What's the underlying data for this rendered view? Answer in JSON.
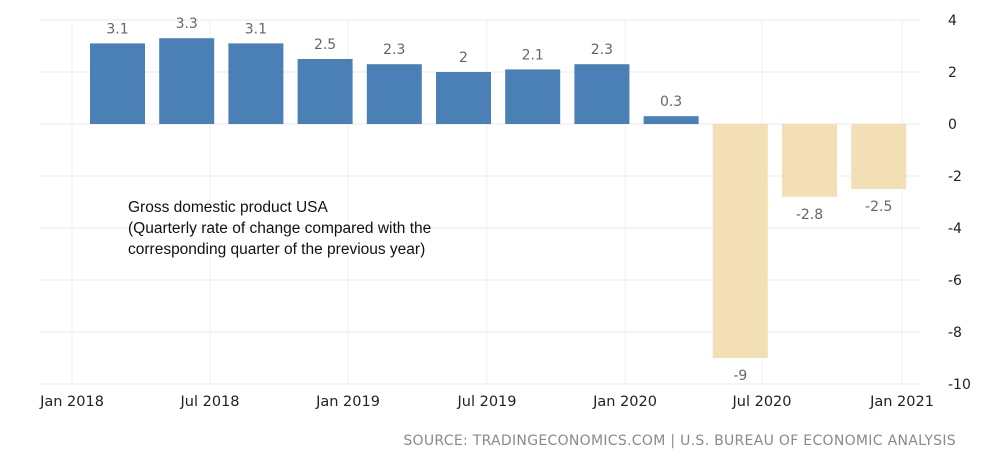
{
  "chart_data": {
    "type": "bar",
    "categories": [
      "Jan 2018",
      "Apr 2018",
      "Jul 2018",
      "Oct 2018",
      "Jan 2019",
      "Apr 2019",
      "Jul 2019",
      "Oct 2019",
      "Jan 2020",
      "Apr 2020",
      "Jul 2020",
      "Oct 2020"
    ],
    "values": [
      3.1,
      3.3,
      3.1,
      2.5,
      2.3,
      2,
      2.1,
      2.3,
      0.3,
      -9,
      -2.8,
      -2.5
    ],
    "data_labels": [
      "3.1",
      "3.3",
      "3.1",
      "2.5",
      "2.3",
      "2",
      "2.1",
      "2.3",
      "0.3",
      "-9",
      "-2.8",
      "-2.5"
    ],
    "x_tick_labels": [
      "Jan 2018",
      "Jul 2018",
      "Jan 2019",
      "Jul 2019",
      "Jan 2020",
      "Jul 2020",
      "Jan 2021"
    ],
    "y_tick_labels": [
      "4",
      "2",
      "0",
      "-2",
      "-4",
      "-6",
      "-8",
      "-10"
    ],
    "ylim": [
      -10,
      4
    ],
    "y_axis_side": "right",
    "grid": true,
    "colors": {
      "positive": "#4a80b6",
      "negative": "#f3dfb6",
      "grid": "#e8e8e8",
      "label": "#666666"
    },
    "annotation": [
      "Gross domestic product USA",
      "(Quarterly rate of change compared with the",
      "corresponding quarter of the previous year)"
    ],
    "source": "SOURCE: TRADINGECONOMICS.COM | U.S. BUREAU OF ECONOMIC ANALYSIS"
  }
}
